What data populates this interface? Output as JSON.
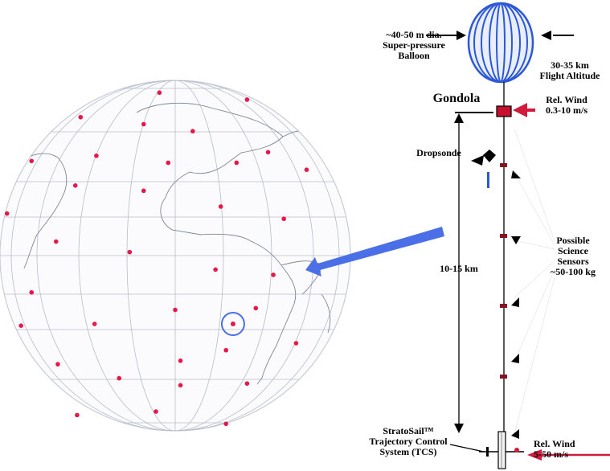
{
  "globe": {
    "name": "earth-globe",
    "sensor_grid_points": [
      [
        -0.09,
        -0.93
      ],
      [
        0.41,
        -0.89
      ],
      [
        -0.54,
        -0.79
      ],
      [
        -0.18,
        -0.75
      ],
      [
        0.1,
        -0.71
      ],
      [
        0.53,
        -0.59
      ],
      [
        -0.82,
        -0.54
      ],
      [
        -0.45,
        -0.57
      ],
      [
        -0.04,
        -0.53
      ],
      [
        0.35,
        -0.53
      ],
      [
        0.75,
        -0.49
      ],
      [
        -0.57,
        -0.4
      ],
      [
        -0.18,
        -0.37
      ],
      [
        0.26,
        -0.28
      ],
      [
        -0.96,
        -0.24
      ],
      [
        0.62,
        -0.21
      ],
      [
        -0.68,
        -0.08
      ],
      [
        -0.26,
        -0.02
      ],
      [
        0.23,
        0.08
      ],
      [
        0.56,
        0.11
      ],
      [
        -0.82,
        0.21
      ],
      [
        0.46,
        0.3
      ],
      [
        0.0,
        0.31
      ],
      [
        -0.46,
        0.39
      ],
      [
        -0.88,
        0.4
      ],
      [
        0.03,
        0.6
      ],
      [
        0.29,
        0.54
      ],
      [
        0.69,
        0.5
      ],
      [
        -0.67,
        0.62
      ],
      [
        -0.32,
        0.7
      ],
      [
        0.03,
        0.74
      ],
      [
        0.41,
        0.73
      ],
      [
        -0.56,
        0.91
      ],
      [
        -0.11,
        0.89
      ],
      [
        0.29,
        0.96
      ]
    ],
    "highlighted_point": [
      0.33,
      0.39
    ],
    "marker_color": "#e8174a",
    "highlight_color": "#4b6fe6"
  },
  "labels": {
    "balloon_dia": "~40-50 m dia.\nSuper-pressure\nBalloon",
    "altitude": "30-35 km\nFlight Altitude",
    "gondola": "Gondola",
    "rel_wind_top": "Rel. Wind\n0.3-10 m/s",
    "dropsonde": "Dropsonde",
    "tether_length": "10-15 km",
    "sensors": "Possible\nScience\nSensors\n~50-100 kg",
    "tcs": "StratoSail™\nTrajectory Control\nSystem (TCS)",
    "rel_wind_bottom": "Rel. Wind\n5-50 m/s"
  },
  "colors": {
    "balloon": "#2c57d6",
    "gondola": "#c8102e",
    "sensor_pod": "#8b1020",
    "wind_arrow": "#d11a3c",
    "pointer_arrow": "#4b6fe6",
    "dropsonde_tube": "#2c57d6"
  }
}
